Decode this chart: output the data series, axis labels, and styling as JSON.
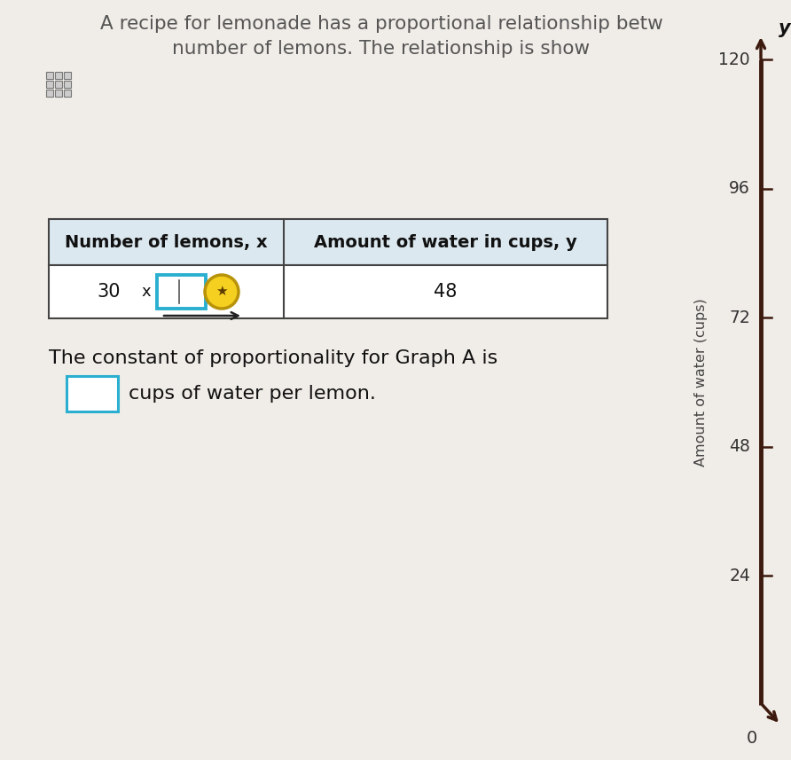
{
  "title_line1": "A recipe for lemonade has a proportional relationship betw",
  "title_line2": "number of lemons. The relationship is show",
  "bg_color": "#f0ede8",
  "table_header": [
    "Number of lemons, x",
    "Amount of water in cups, y"
  ],
  "table_row_x": "30",
  "table_row_y": "48",
  "text_constant": "The constant of proportionality for Graph A is",
  "text_cups": "cups of water per lemon.",
  "axis_yticks": [
    0,
    24,
    48,
    72,
    96,
    120
  ],
  "axis_ylabel": "Amount of water (cups)",
  "axis_label_y": "y",
  "axis_color": "#3d1a0e",
  "table_border_color": "#444444",
  "input_box_color": "#2aafd0",
  "hint_circle_color_edge": "#b8930a",
  "hint_circle_color_fill": "#f5d020",
  "table_header_bg": "#dce8f0",
  "table_row_bg": "#ffffff",
  "text_color": "#333333",
  "title_color": "#555555"
}
